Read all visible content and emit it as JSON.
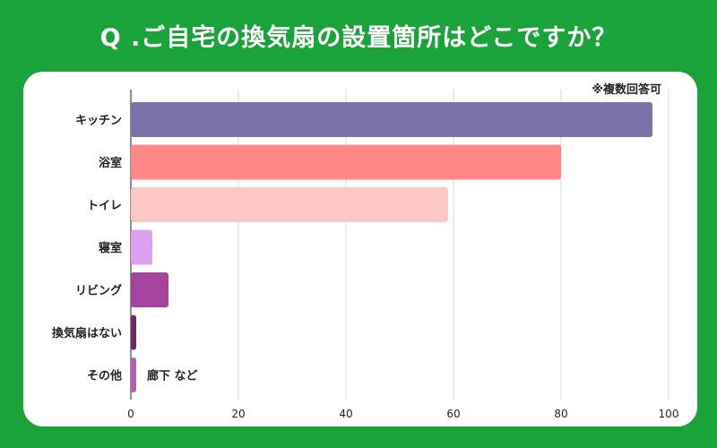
{
  "chart_data": {
    "type": "bar",
    "orientation": "horizontal",
    "title": "Q .ご自宅の換気扇の設置箇所はどこですか？",
    "note": "※複数回答可",
    "categories": [
      "キッチン",
      "浴室",
      "トイレ",
      "寝室",
      "リビング",
      "換気扇はない",
      "その他"
    ],
    "values": [
      97,
      80,
      59,
      4,
      7,
      1,
      1
    ],
    "colors": [
      "#7a72a8",
      "#ff8886",
      "#ffc6c6",
      "#dea2f0",
      "#a4449c",
      "#6e2a63",
      "#b45fb0"
    ],
    "xlim": [
      0,
      100
    ],
    "xticks": [
      0,
      20,
      40,
      60,
      80,
      100
    ],
    "grid": true,
    "annotations": [
      {
        "category": "その他",
        "text": "廊下 など"
      }
    ]
  }
}
